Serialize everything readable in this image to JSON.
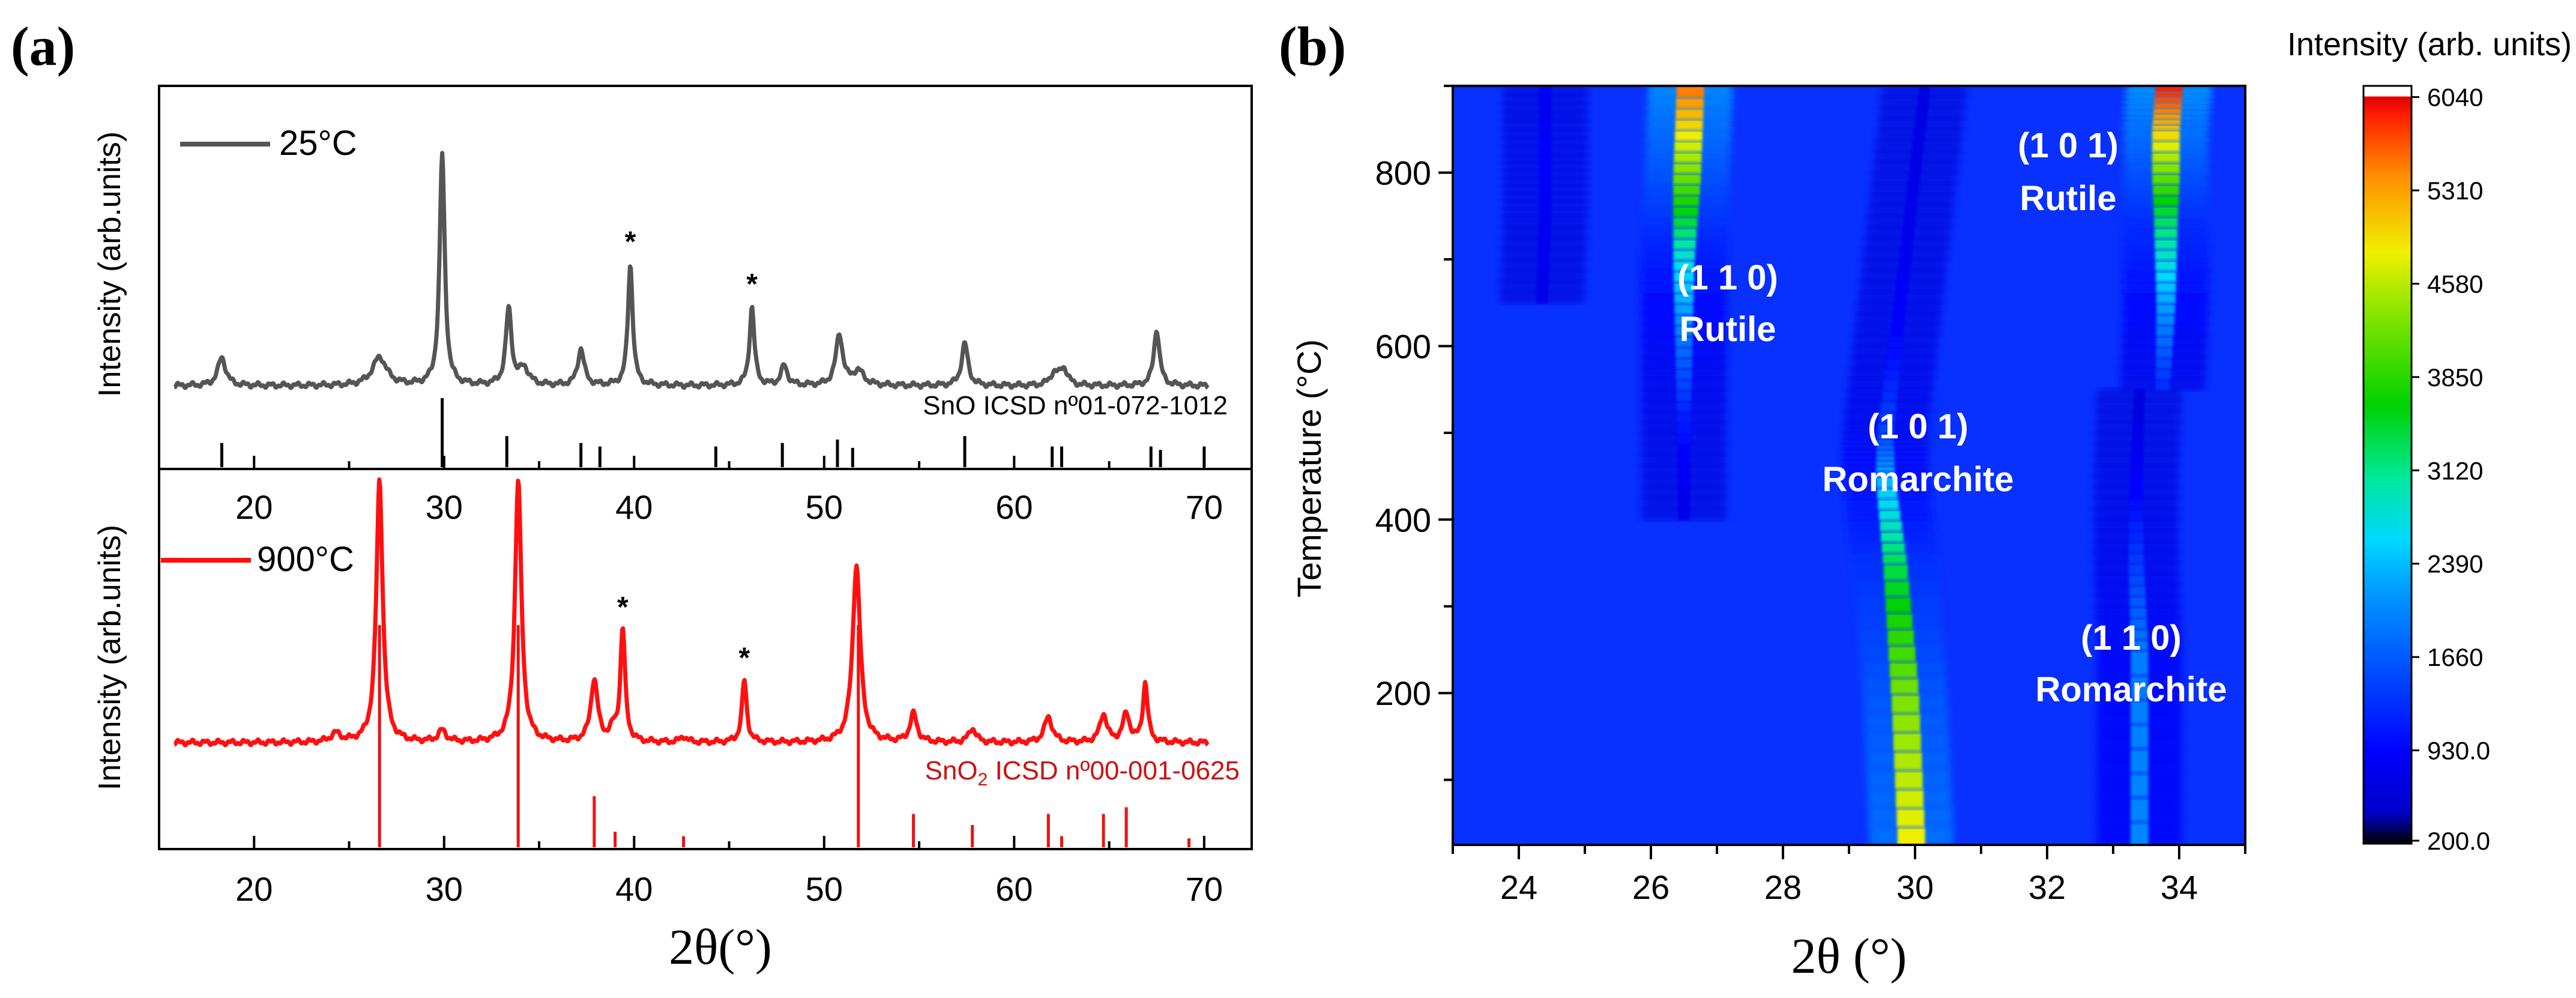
{
  "panel_a": {
    "label": "(a)",
    "top": {
      "legend": "25°C",
      "ylabel": "Intensity (arb.units)",
      "ref_label": "SnO ICSD nº01-072-1012",
      "line_color": "#555555",
      "ref_color": "#000000"
    },
    "bottom": {
      "legend": "900°C",
      "ylabel": "Intensity (arb.units)",
      "ref_label_pre": "SnO",
      "ref_label_sub": "2",
      "ref_label_post": " ICSD nº00-001-0625",
      "line_color": "#ff1010",
      "ref_color": "#ee1111",
      "ref_text_color": "#cc1111"
    },
    "xlabel": "2θ(°)",
    "x_ticks": [
      "20",
      "30",
      "40",
      "50",
      "60",
      "70"
    ]
  },
  "panel_b": {
    "label": "(b)",
    "xlabel": "2θ (°)",
    "ylabel": "Temperature (°C)",
    "x_ticks": [
      "24",
      "26",
      "28",
      "30",
      "32",
      "34"
    ],
    "y_ticks": [
      "200",
      "400",
      "600",
      "800"
    ],
    "annotations": [
      {
        "line1": "(1 1 0)",
        "line2": "Rutile"
      },
      {
        "line1": "(1 0 1)",
        "line2": "Romarchite"
      },
      {
        "line1": "(1 0 1)",
        "line2": "Rutile"
      },
      {
        "line1": "(1 1 0)",
        "line2": "Romarchite"
      }
    ],
    "colorbar_title": "Intensity (arb. units)",
    "colorbar_ticks": [
      "6040",
      "5310",
      "4580",
      "3850",
      "3120",
      "2390",
      "1660",
      "930.0",
      "200.0"
    ]
  },
  "chart_data": [
    {
      "type": "line",
      "title": "25°C",
      "xlabel": "2θ(°)",
      "ylabel": "Intensity (arb.units)",
      "xlim": [
        15,
        72.5
      ],
      "baseline": 0.08,
      "peaks": [
        {
          "x": 18.3,
          "h": 0.1,
          "w": 0.25
        },
        {
          "x": 26.6,
          "h": 0.1,
          "w": 0.45
        },
        {
          "x": 29.9,
          "h": 0.82,
          "w": 0.16
        },
        {
          "x": 33.4,
          "h": 0.27,
          "w": 0.18
        },
        {
          "x": 34.2,
          "h": 0.06,
          "w": 0.3
        },
        {
          "x": 37.2,
          "h": 0.13,
          "w": 0.2
        },
        {
          "x": 39.8,
          "h": 0.43,
          "w": 0.15
        },
        {
          "x": 46.2,
          "h": 0.28,
          "w": 0.15
        },
        {
          "x": 47.9,
          "h": 0.07,
          "w": 0.2
        },
        {
          "x": 50.8,
          "h": 0.18,
          "w": 0.22
        },
        {
          "x": 51.8,
          "h": 0.05,
          "w": 0.35
        },
        {
          "x": 57.4,
          "h": 0.15,
          "w": 0.2
        },
        {
          "x": 62.1,
          "h": 0.04,
          "w": 0.25
        },
        {
          "x": 62.6,
          "h": 0.06,
          "w": 0.25
        },
        {
          "x": 67.5,
          "h": 0.2,
          "w": 0.18
        }
      ],
      "reference": {
        "label": "SnO ICSD nº01-072-1012",
        "x": [
          18.3,
          29.9,
          33.3,
          37.2,
          38.2,
          44.3,
          47.8,
          50.7,
          51.5,
          57.4,
          62.0,
          62.5,
          67.2,
          67.7,
          70.0
        ],
        "h": [
          0.35,
          1.0,
          0.45,
          0.35,
          0.3,
          0.3,
          0.35,
          0.4,
          0.28,
          0.45,
          0.3,
          0.3,
          0.3,
          0.25,
          0.3
        ]
      },
      "markers": [
        {
          "x": 39.8,
          "label": "*"
        },
        {
          "x": 46.2,
          "label": "*"
        }
      ]
    },
    {
      "type": "line",
      "title": "900°C",
      "xlabel": "2θ(°)",
      "ylabel": "Intensity (arb.units)",
      "xlim": [
        15,
        72.5
      ],
      "baseline": 0.06,
      "peaks": [
        {
          "x": 24.3,
          "h": 0.03,
          "w": 0.3
        },
        {
          "x": 26.6,
          "h": 0.93,
          "w": 0.2
        },
        {
          "x": 29.9,
          "h": 0.04,
          "w": 0.25
        },
        {
          "x": 33.9,
          "h": 0.93,
          "w": 0.2
        },
        {
          "x": 37.9,
          "h": 0.22,
          "w": 0.22
        },
        {
          "x": 38.9,
          "h": 0.04,
          "w": 0.2
        },
        {
          "x": 39.4,
          "h": 0.4,
          "w": 0.15
        },
        {
          "x": 42.6,
          "h": 0.02,
          "w": 0.2
        },
        {
          "x": 45.8,
          "h": 0.22,
          "w": 0.15
        },
        {
          "x": 51.7,
          "h": 0.63,
          "w": 0.24
        },
        {
          "x": 54.7,
          "h": 0.1,
          "w": 0.22
        },
        {
          "x": 57.8,
          "h": 0.05,
          "w": 0.22
        },
        {
          "x": 61.8,
          "h": 0.09,
          "w": 0.25
        },
        {
          "x": 64.7,
          "h": 0.1,
          "w": 0.22
        },
        {
          "x": 65.9,
          "h": 0.1,
          "w": 0.22
        },
        {
          "x": 66.9,
          "h": 0.21,
          "w": 0.15
        }
      ],
      "reference": {
        "label": "SnO2 ICSD nº00-001-0625",
        "x": [
          26.6,
          33.9,
          37.9,
          39.0,
          42.6,
          51.8,
          54.7,
          57.8,
          61.8,
          62.5,
          64.7,
          65.9,
          69.2
        ],
        "h": [
          1.0,
          1.0,
          0.23,
          0.07,
          0.05,
          1.0,
          0.15,
          0.1,
          0.15,
          0.05,
          0.15,
          0.18,
          0.04
        ]
      },
      "markers": [
        {
          "x": 39.4,
          "label": "*"
        },
        {
          "x": 45.8,
          "label": "*"
        }
      ]
    },
    {
      "type": "heatmap",
      "title": "",
      "xlabel": "2θ (°)",
      "ylabel": "Temperature (°C)",
      "xlim": [
        23,
        35
      ],
      "ylim": [
        25,
        900
      ],
      "x_ticks": [
        24,
        26,
        28,
        30,
        32,
        34
      ],
      "y_ticks": [
        200,
        400,
        600,
        800
      ],
      "colorbar": {
        "title": "Intensity (arb. units)",
        "min": 200,
        "max": 6040,
        "ticks": [
          6040,
          5310,
          4580,
          3850,
          3120,
          2390,
          1660,
          930,
          200
        ]
      },
      "features": [
        {
          "name": "Romarchite (1 0 1)",
          "path": [
            [
              25,
              29.95
            ],
            [
              200,
              29.85
            ],
            [
              350,
              29.7
            ],
            [
              450,
              29.55
            ],
            [
              500,
              29.55
            ],
            [
              600,
              29.7
            ],
            [
              700,
              29.85
            ],
            [
              800,
              30.0
            ],
            [
              900,
              30.15
            ]
          ],
          "intensity": [
            4800,
            4200,
            3300,
            2300,
            1500,
            1000,
            750,
            600,
            550
          ]
        },
        {
          "name": "Romarchite (1 1 0)",
          "path": [
            [
              25,
              33.4
            ],
            [
              250,
              33.4
            ],
            [
              350,
              33.35
            ],
            [
              450,
              33.35
            ],
            [
              550,
              33.4
            ]
          ],
          "intensity": [
            2000,
            1900,
            1400,
            850,
            450
          ]
        },
        {
          "name": "Rutile (1 1 0)",
          "path": [
            [
              400,
              26.5
            ],
            [
              500,
              26.5
            ],
            [
              600,
              26.5
            ],
            [
              700,
              26.5
            ],
            [
              800,
              26.55
            ],
            [
              900,
              26.6
            ]
          ],
          "intensity": [
            600,
            1000,
            1800,
            2700,
            4200,
            5500
          ]
        },
        {
          "name": "Rutile (1 0 1)",
          "path": [
            [
              550,
              33.75
            ],
            [
              650,
              33.8
            ],
            [
              750,
              33.8
            ],
            [
              850,
              33.8
            ],
            [
              900,
              33.85
            ]
          ],
          "intensity": [
            1200,
            2200,
            3300,
            5000,
            5900
          ]
        },
        {
          "name": "weak feature",
          "path": [
            [
              650,
              24.35
            ],
            [
              750,
              24.4
            ],
            [
              820,
              24.4
            ],
            [
              900,
              24.4
            ]
          ],
          "intensity": [
            600,
            800,
            900,
            700
          ]
        }
      ],
      "annotations": [
        "(1 1 0) Rutile",
        "(1 0 1) Romarchite",
        "(1 0 1) Rutile",
        "(1 1 0) Romarchite"
      ]
    }
  ]
}
